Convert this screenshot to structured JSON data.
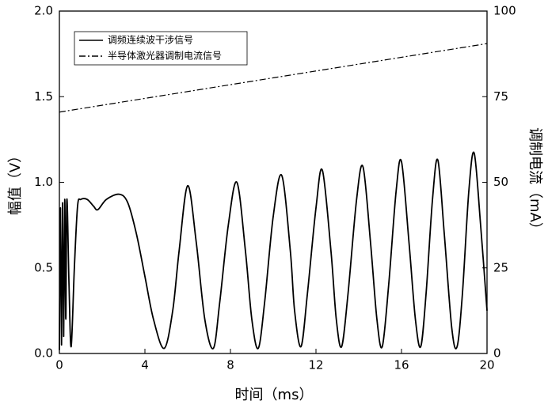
{
  "chart_data": {
    "type": "line",
    "xlabel": "时间（ms）",
    "ylabel": "幅值（V）",
    "y2label": "调制电流（mA）",
    "xlim": [
      0,
      20
    ],
    "xticks": [
      0,
      4,
      8,
      12,
      16,
      20
    ],
    "ylim": [
      0,
      2
    ],
    "yticks": [
      {
        "value": 0,
        "label": "0.0"
      },
      {
        "value": 0.5,
        "label": "0.5"
      },
      {
        "value": 1,
        "label": "1.0"
      },
      {
        "value": 1.5,
        "label": "1.5"
      },
      {
        "value": 2,
        "label": "2.0"
      }
    ],
    "y2lim": [
      0,
      100
    ],
    "y2ticks": [
      0,
      25,
      50,
      75,
      100
    ],
    "legend": "upper left",
    "series": [
      {
        "name": "调频连续波干涉信号",
        "color": "#000000",
        "dash": "solid",
        "x": [
          0,
          0.05,
          0.1,
          0.15,
          0.2,
          0.25,
          0.3,
          0.35,
          0.45,
          0.55,
          0.7,
          0.85,
          1.0,
          1.3,
          1.6,
          1.8,
          2.2,
          2.8,
          3.2,
          3.6,
          4.0,
          4.4,
          4.9,
          5.3,
          5.6,
          6.0,
          6.4,
          6.8,
          7.2,
          7.5,
          7.9,
          8.3,
          8.7,
          9.0,
          9.3,
          9.6,
          10.0,
          10.4,
          10.8,
          11.0,
          11.3,
          11.6,
          12.0,
          12.3,
          12.7,
          12.95,
          13.2,
          13.5,
          13.9,
          14.2,
          14.55,
          14.85,
          15.1,
          15.4,
          15.75,
          16.0,
          16.35,
          16.65,
          16.9,
          17.15,
          17.45,
          17.7,
          18.0,
          18.35,
          18.6,
          18.85,
          19.15,
          19.4,
          19.7,
          20.0
        ],
        "values": [
          0.02,
          0.85,
          0.05,
          0.88,
          0.1,
          0.9,
          0.2,
          0.9,
          0.4,
          0.04,
          0.5,
          0.86,
          0.9,
          0.9,
          0.86,
          0.84,
          0.9,
          0.93,
          0.88,
          0.7,
          0.45,
          0.2,
          0.03,
          0.25,
          0.6,
          0.98,
          0.65,
          0.2,
          0.03,
          0.3,
          0.75,
          1.0,
          0.6,
          0.2,
          0.03,
          0.3,
          0.8,
          1.04,
          0.6,
          0.25,
          0.04,
          0.35,
          0.85,
          1.07,
          0.6,
          0.2,
          0.04,
          0.35,
          0.9,
          1.09,
          0.65,
          0.2,
          0.04,
          0.4,
          0.95,
          1.12,
          0.65,
          0.2,
          0.04,
          0.35,
          0.9,
          1.13,
          0.7,
          0.15,
          0.04,
          0.35,
          0.95,
          1.17,
          0.75,
          0.25
        ]
      },
      {
        "name": "半导体激光器调制电流信号",
        "color": "#000000",
        "dash": "dash-dot",
        "axis": "y2",
        "x": [
          0,
          20
        ],
        "values": [
          70.5,
          90.5
        ]
      }
    ]
  }
}
